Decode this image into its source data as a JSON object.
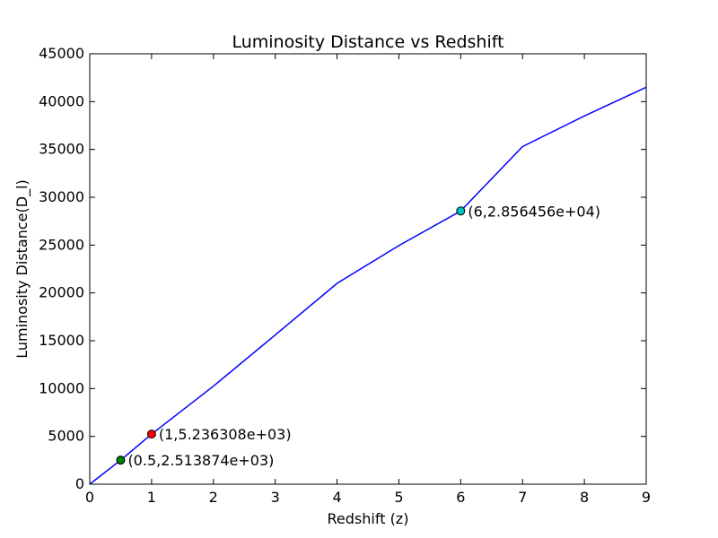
{
  "chart_data": {
    "type": "line",
    "title": "Luminosity Distance vs Redshift",
    "xlabel": "Redshift (z)",
    "ylabel": "Luminosity Distance(D_l)",
    "xlim": [
      0,
      9
    ],
    "ylim": [
      0,
      45000
    ],
    "xticks": [
      "0",
      "1",
      "2",
      "3",
      "4",
      "5",
      "6",
      "7",
      "8",
      "9"
    ],
    "yticks": [
      "0",
      "5000",
      "10000",
      "15000",
      "20000",
      "25000",
      "30000",
      "35000",
      "40000",
      "45000"
    ],
    "grid": false,
    "series": [
      {
        "color": "#0000ff",
        "x": [
          0,
          0.5,
          1,
          1.5,
          2,
          2.5,
          3,
          3.5,
          4,
          4.5,
          5,
          5.5,
          6,
          6.5,
          7,
          7.5,
          8,
          8.5,
          9
        ],
        "y": [
          0,
          2513.874,
          5236.308,
          7981,
          10750,
          13520,
          16300,
          19080,
          21850,
          24580,
          27300,
          29950,
          28564.56,
          31260,
          33930,
          36580,
          39200,
          41810,
          41500
        ]
      }
    ],
    "points": [
      {
        "x": 0.5,
        "y": 2513.874,
        "label": "(0.5,2.513874e+03)",
        "color": "#008000"
      },
      {
        "x": 1,
        "y": 5236.308,
        "label": "(1,5.236308e+03)",
        "color": "#ff0000"
      },
      {
        "x": 6,
        "y": 28564.56,
        "label": "(6,2.856456e+04)",
        "color": "#00bfbf"
      }
    ]
  }
}
